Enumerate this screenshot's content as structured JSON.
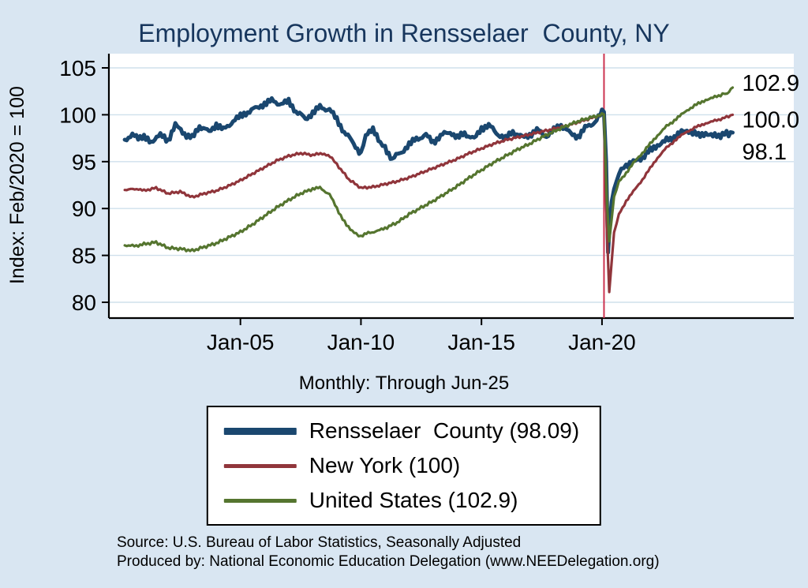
{
  "source": {
    "line1": "Source: U.S. Bureau of Labor Statistics, Seasonally Adjusted",
    "line2": "Produced by: National Economic Education Delegation (www.NEEDelegation.org)"
  },
  "legend": {
    "items": [
      {
        "label": "Rensselaer  County (98.09)",
        "color": "#1a476f",
        "thickness": 9
      },
      {
        "label": "New York (100)",
        "color": "#90353b",
        "thickness": 5
      },
      {
        "label": "United States (102.9)",
        "color": "#55752f",
        "thickness": 5
      }
    ]
  },
  "chart_data": {
    "type": "line",
    "title": "Employment Growth in Rensselaer  County, NY",
    "subtitle": "Monthly: Through Jun-25",
    "xlabel": "",
    "ylabel": "Index: Feb/2020 = 100",
    "ylim": [
      80,
      105
    ],
    "yticks": [
      80,
      85,
      90,
      95,
      100,
      105
    ],
    "xlim": [
      2000.1,
      2025.6
    ],
    "xticks": [
      {
        "x": 2005,
        "label": "Jan-05"
      },
      {
        "x": 2010,
        "label": "Jan-10"
      },
      {
        "x": 2015,
        "label": "Jan-15"
      },
      {
        "x": 2020,
        "label": "Jan-20"
      }
    ],
    "grid": true,
    "event_line_x": 2020.083,
    "event_line_color": "#cc3350",
    "series": [
      {
        "name": "Rensselaer County",
        "color": "#1a476f",
        "width": 5,
        "jitter": 0.38,
        "end_label": "98.1",
        "points": [
          [
            2000.2,
            97.4
          ],
          [
            2000.6,
            97.8
          ],
          [
            2001.0,
            97.5
          ],
          [
            2001.3,
            97.1
          ],
          [
            2001.6,
            97.9
          ],
          [
            2002.0,
            97.3
          ],
          [
            2002.3,
            98.9
          ],
          [
            2002.6,
            98.1
          ],
          [
            2003.0,
            97.5
          ],
          [
            2003.3,
            98.8
          ],
          [
            2003.7,
            98.2
          ],
          [
            2004.0,
            99.0
          ],
          [
            2004.3,
            98.4
          ],
          [
            2004.7,
            99.3
          ],
          [
            2005.0,
            99.8
          ],
          [
            2005.3,
            100.3
          ],
          [
            2005.7,
            100.8
          ],
          [
            2006.0,
            101.2
          ],
          [
            2006.3,
            101.5
          ],
          [
            2006.7,
            101.1
          ],
          [
            2007.0,
            101.4
          ],
          [
            2007.3,
            100.4
          ],
          [
            2007.7,
            99.6
          ],
          [
            2008.0,
            100.2
          ],
          [
            2008.3,
            100.8
          ],
          [
            2008.7,
            100.5
          ],
          [
            2009.0,
            99.5
          ],
          [
            2009.3,
            98.2
          ],
          [
            2009.7,
            97.0
          ],
          [
            2010.0,
            95.8
          ],
          [
            2010.2,
            97.9
          ],
          [
            2010.5,
            98.3
          ],
          [
            2010.8,
            97.1
          ],
          [
            2011.0,
            96.5
          ],
          [
            2011.3,
            95.3
          ],
          [
            2011.7,
            96.1
          ],
          [
            2012.0,
            96.8
          ],
          [
            2012.3,
            97.4
          ],
          [
            2012.7,
            97.8
          ],
          [
            2013.0,
            97.1
          ],
          [
            2013.3,
            97.8
          ],
          [
            2013.7,
            98.2
          ],
          [
            2014.0,
            97.5
          ],
          [
            2014.3,
            98.0
          ],
          [
            2014.7,
            97.4
          ],
          [
            2015.0,
            98.6
          ],
          [
            2015.3,
            98.9
          ],
          [
            2015.7,
            97.9
          ],
          [
            2016.0,
            97.4
          ],
          [
            2016.3,
            98.2
          ],
          [
            2016.7,
            97.6
          ],
          [
            2017.0,
            97.9
          ],
          [
            2017.3,
            98.4
          ],
          [
            2017.7,
            97.7
          ],
          [
            2018.0,
            98.3
          ],
          [
            2018.3,
            98.9
          ],
          [
            2018.7,
            98.0
          ],
          [
            2019.0,
            97.7
          ],
          [
            2019.3,
            98.6
          ],
          [
            2019.7,
            99.2
          ],
          [
            2020.0,
            100.2
          ],
          [
            2020.08,
            100.5
          ],
          [
            2020.17,
            95.0
          ],
          [
            2020.25,
            85.6
          ],
          [
            2020.4,
            90.8
          ],
          [
            2020.6,
            93.0
          ],
          [
            2020.8,
            94.2
          ],
          [
            2021.0,
            94.6
          ],
          [
            2021.3,
            94.9
          ],
          [
            2021.6,
            95.3
          ],
          [
            2022.0,
            96.2
          ],
          [
            2022.3,
            96.8
          ],
          [
            2022.6,
            97.2
          ],
          [
            2023.0,
            97.6
          ],
          [
            2023.3,
            98.1
          ],
          [
            2023.6,
            98.3
          ],
          [
            2024.0,
            97.8
          ],
          [
            2024.3,
            98.1
          ],
          [
            2024.6,
            97.7
          ],
          [
            2025.0,
            97.9
          ],
          [
            2025.42,
            98.1
          ]
        ]
      },
      {
        "name": "New York",
        "color": "#90353b",
        "width": 3.2,
        "jitter": 0.13,
        "end_label": "100.0",
        "points": [
          [
            2000.2,
            92.0
          ],
          [
            2000.7,
            92.1
          ],
          [
            2001.0,
            91.9
          ],
          [
            2001.5,
            92.2
          ],
          [
            2002.0,
            91.6
          ],
          [
            2002.5,
            91.8
          ],
          [
            2003.0,
            91.2
          ],
          [
            2003.5,
            91.6
          ],
          [
            2004.0,
            91.9
          ],
          [
            2004.5,
            92.4
          ],
          [
            2005.0,
            93.0
          ],
          [
            2005.5,
            93.7
          ],
          [
            2006.0,
            94.4
          ],
          [
            2006.5,
            95.1
          ],
          [
            2007.0,
            95.6
          ],
          [
            2007.5,
            95.9
          ],
          [
            2008.0,
            95.7
          ],
          [
            2008.4,
            95.9
          ],
          [
            2008.8,
            95.4
          ],
          [
            2009.0,
            94.7
          ],
          [
            2009.5,
            93.1
          ],
          [
            2010.0,
            92.2
          ],
          [
            2010.5,
            92.3
          ],
          [
            2011.0,
            92.6
          ],
          [
            2011.5,
            92.9
          ],
          [
            2012.0,
            93.3
          ],
          [
            2012.5,
            93.8
          ],
          [
            2013.0,
            94.3
          ],
          [
            2013.5,
            94.8
          ],
          [
            2014.0,
            95.3
          ],
          [
            2014.5,
            95.9
          ],
          [
            2015.0,
            96.4
          ],
          [
            2015.5,
            96.9
          ],
          [
            2016.0,
            97.3
          ],
          [
            2016.5,
            97.6
          ],
          [
            2017.0,
            97.9
          ],
          [
            2017.5,
            98.2
          ],
          [
            2018.0,
            98.5
          ],
          [
            2018.5,
            98.8
          ],
          [
            2019.0,
            99.2
          ],
          [
            2019.5,
            99.6
          ],
          [
            2020.0,
            100.0
          ],
          [
            2020.08,
            100.1
          ],
          [
            2020.2,
            88.0
          ],
          [
            2020.3,
            81.1
          ],
          [
            2020.5,
            87.4
          ],
          [
            2020.7,
            89.4
          ],
          [
            2021.0,
            90.8
          ],
          [
            2021.3,
            91.8
          ],
          [
            2021.6,
            92.8
          ],
          [
            2022.0,
            94.3
          ],
          [
            2022.3,
            95.4
          ],
          [
            2022.6,
            96.3
          ],
          [
            2023.0,
            97.2
          ],
          [
            2023.3,
            97.8
          ],
          [
            2023.6,
            98.3
          ],
          [
            2024.0,
            98.8
          ],
          [
            2024.3,
            99.1
          ],
          [
            2024.6,
            99.3
          ],
          [
            2025.0,
            99.6
          ],
          [
            2025.42,
            100.0
          ]
        ]
      },
      {
        "name": "United States",
        "color": "#55752f",
        "width": 3.2,
        "jitter": 0.16,
        "end_label": "102.9",
        "points": [
          [
            2000.2,
            86.1
          ],
          [
            2000.6,
            86.0
          ],
          [
            2001.0,
            86.2
          ],
          [
            2001.5,
            86.4
          ],
          [
            2002.0,
            85.8
          ],
          [
            2002.5,
            85.7
          ],
          [
            2003.0,
            85.5
          ],
          [
            2003.5,
            85.9
          ],
          [
            2004.0,
            86.3
          ],
          [
            2004.5,
            86.9
          ],
          [
            2005.0,
            87.5
          ],
          [
            2005.5,
            88.3
          ],
          [
            2006.0,
            89.2
          ],
          [
            2006.5,
            90.1
          ],
          [
            2007.0,
            90.9
          ],
          [
            2007.5,
            91.6
          ],
          [
            2008.0,
            92.1
          ],
          [
            2008.3,
            92.2
          ],
          [
            2008.7,
            91.5
          ],
          [
            2009.0,
            90.0
          ],
          [
            2009.4,
            88.2
          ],
          [
            2009.8,
            87.3
          ],
          [
            2010.0,
            87.0
          ],
          [
            2010.3,
            87.4
          ],
          [
            2010.7,
            87.6
          ],
          [
            2011.0,
            87.9
          ],
          [
            2011.5,
            88.5
          ],
          [
            2012.0,
            89.4
          ],
          [
            2012.5,
            90.1
          ],
          [
            2013.0,
            90.8
          ],
          [
            2013.5,
            91.6
          ],
          [
            2014.0,
            92.4
          ],
          [
            2014.5,
            93.3
          ],
          [
            2015.0,
            94.1
          ],
          [
            2015.5,
            94.9
          ],
          [
            2016.0,
            95.6
          ],
          [
            2016.5,
            96.3
          ],
          [
            2017.0,
            96.9
          ],
          [
            2017.5,
            97.6
          ],
          [
            2018.0,
            98.2
          ],
          [
            2018.5,
            98.8
          ],
          [
            2019.0,
            99.3
          ],
          [
            2019.5,
            99.7
          ],
          [
            2020.0,
            100.0
          ],
          [
            2020.08,
            100.1
          ],
          [
            2020.2,
            91.0
          ],
          [
            2020.3,
            86.5
          ],
          [
            2020.5,
            91.2
          ],
          [
            2020.7,
            92.9
          ],
          [
            2021.0,
            93.8
          ],
          [
            2021.3,
            94.8
          ],
          [
            2021.6,
            95.7
          ],
          [
            2022.0,
            96.9
          ],
          [
            2022.3,
            97.8
          ],
          [
            2022.6,
            98.6
          ],
          [
            2023.0,
            99.4
          ],
          [
            2023.3,
            100.0
          ],
          [
            2023.6,
            100.6
          ],
          [
            2024.0,
            101.2
          ],
          [
            2024.3,
            101.6
          ],
          [
            2024.6,
            101.8
          ],
          [
            2025.0,
            102.2
          ],
          [
            2025.2,
            102.3
          ],
          [
            2025.42,
            102.9
          ]
        ]
      }
    ]
  }
}
